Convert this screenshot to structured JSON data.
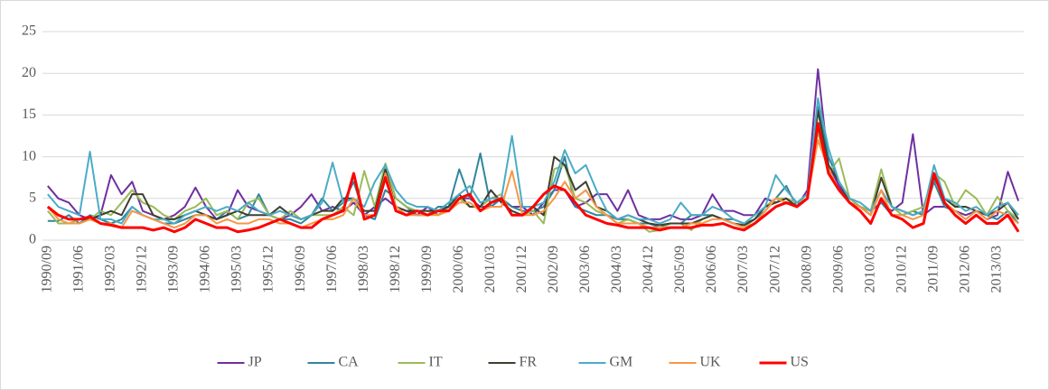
{
  "chart_data": {
    "type": "line",
    "categories": [
      "1990/09",
      null,
      null,
      "1991/06",
      null,
      null,
      "1992/03",
      null,
      null,
      "1992/12",
      null,
      null,
      "1993/09",
      null,
      null,
      "1994/06",
      null,
      null,
      "1995/03",
      null,
      null,
      "1995/12",
      null,
      null,
      "1996/09",
      null,
      null,
      "1997/06",
      null,
      null,
      "1998/03",
      null,
      null,
      "1998/12",
      null,
      null,
      "1999/09",
      null,
      null,
      "2000/06",
      null,
      null,
      "2001/03",
      null,
      null,
      "2001/12",
      null,
      null,
      "2002/09",
      null,
      null,
      "2003/06",
      null,
      null,
      "2004/03",
      null,
      null,
      "2004/12",
      null,
      null,
      "2005/09",
      null,
      null,
      "2006/06",
      null,
      null,
      "2007/03",
      null,
      null,
      "2007/12",
      null,
      null,
      "2008/09",
      null,
      null,
      "2009/06",
      null,
      null,
      "2010/03",
      null,
      null,
      "2010/12",
      null,
      null,
      "2011/09",
      null,
      null,
      "2012/06",
      null,
      null,
      "2013/03",
      null,
      null
    ],
    "series": [
      {
        "name": "JP",
        "color": "#7030a0",
        "values": [
          6.5,
          5,
          4.5,
          3,
          2.5,
          3,
          7.8,
          5.5,
          7,
          3.5,
          3,
          2.5,
          3,
          4,
          6.3,
          4,
          2.5,
          3,
          6,
          4,
          3.5,
          3,
          2.5,
          3,
          4,
          5.5,
          3.5,
          4,
          3.5,
          4.5,
          3,
          4,
          5,
          4,
          3.5,
          3,
          4,
          3,
          4,
          5,
          5,
          4,
          4,
          5,
          4,
          4,
          3,
          4.5,
          6,
          6,
          4,
          4.5,
          5.5,
          5.5,
          3.5,
          6,
          3,
          2.5,
          2.5,
          3,
          2.5,
          2.5,
          3,
          5.5,
          3.5,
          3.5,
          3,
          3,
          5,
          4.5,
          5,
          4,
          6,
          20.5,
          9,
          6.5,
          4.5,
          4,
          3.5,
          4.5,
          3.5,
          4.5,
          12.7,
          3,
          4,
          4,
          3.5,
          3,
          3.5,
          2.5,
          3,
          8.2,
          4.7
        ]
      },
      {
        "name": "CA",
        "color": "#31859c",
        "values": [
          2.3,
          2.3,
          3,
          2,
          3,
          2.5,
          2,
          2.5,
          4,
          3,
          2.5,
          2,
          2,
          2.5,
          3,
          3,
          2.5,
          3.5,
          2.5,
          3,
          5.5,
          3,
          2.5,
          2.5,
          2,
          3,
          5,
          3.5,
          4.5,
          7,
          3,
          2.5,
          6,
          5,
          4,
          3,
          3,
          4,
          4,
          8.5,
          5,
          10.4,
          4,
          5,
          4,
          3.5,
          3.5,
          4,
          6,
          10,
          4,
          3.5,
          3,
          3,
          2.5,
          2.5,
          2,
          2,
          1.5,
          2,
          2,
          3,
          3,
          3,
          2.5,
          2.5,
          2,
          2.5,
          3.5,
          5,
          6.5,
          4,
          5,
          16,
          10,
          7,
          5,
          4,
          3.5,
          4.5,
          3,
          3,
          3.5,
          3,
          7,
          4,
          3.5,
          2.5,
          3.5,
          3,
          2.5,
          3.5,
          2
        ]
      },
      {
        "name": "IT",
        "color": "#9bbb59",
        "values": [
          3.5,
          2,
          2,
          2.5,
          2.5,
          3.5,
          3,
          4.5,
          6,
          4.5,
          4,
          3,
          2.5,
          3.5,
          4,
          5,
          3,
          3.5,
          2.5,
          4.5,
          5,
          3,
          2.5,
          3.5,
          2.5,
          3,
          3,
          3,
          4,
          3,
          8.3,
          4,
          9.2,
          5,
          4,
          3.5,
          3.5,
          3,
          4,
          5,
          4,
          4,
          5,
          5.5,
          3,
          3,
          3.5,
          2,
          8.5,
          9,
          5,
          4.5,
          3.5,
          3,
          2,
          2.5,
          2,
          1,
          1.2,
          2,
          2,
          1.2,
          2.5,
          3,
          2.5,
          2,
          1.5,
          2.5,
          4,
          5,
          5,
          4.5,
          5,
          13,
          8,
          9.8,
          5,
          4,
          3.5,
          8.5,
          4,
          3,
          3.5,
          4,
          8,
          7,
          4,
          6,
          5,
          3,
          5.2,
          3.5,
          2.5
        ]
      },
      {
        "name": "FR",
        "color": "#3f3f2f",
        "values": [
          4,
          3,
          2.5,
          2.5,
          2.5,
          3,
          3.5,
          3,
          5.5,
          5.5,
          3,
          2.5,
          2.5,
          3,
          3.5,
          3,
          2.5,
          3,
          3.5,
          3,
          3,
          3,
          4,
          3,
          2.5,
          3,
          3.5,
          3.5,
          5,
          5,
          3.5,
          3.5,
          8.5,
          4,
          3.5,
          3.5,
          3.5,
          3.5,
          4,
          5.5,
          4,
          4,
          6,
          4.5,
          3.5,
          3,
          4,
          3,
          10,
          9,
          6,
          7,
          4,
          3.5,
          2.5,
          3,
          2.5,
          2,
          1.8,
          2,
          2,
          2,
          2.5,
          3,
          2.5,
          2,
          1.8,
          2.5,
          4,
          4.5,
          5,
          4,
          5,
          15.5,
          9,
          7,
          4.5,
          4,
          3,
          7.5,
          4,
          3.5,
          3,
          3.5,
          7.5,
          5,
          4,
          4,
          3.5,
          3,
          3.5,
          4.5,
          2.5
        ]
      },
      {
        "name": "GM",
        "color": "#4bacc6",
        "values": [
          5.5,
          4,
          3.5,
          3,
          10.6,
          2.5,
          2.5,
          2,
          4,
          3,
          2.5,
          2.5,
          2,
          3,
          3.5,
          4,
          3.5,
          4,
          3.5,
          4.5,
          3.5,
          3,
          3.5,
          3,
          2.5,
          3,
          4.5,
          9.3,
          4.5,
          5,
          4,
          7,
          9,
          6,
          4.5,
          4,
          4,
          3.5,
          4.5,
          5.5,
          6.5,
          4.5,
          5,
          5,
          12.5,
          4,
          4,
          4.5,
          7,
          10.8,
          8,
          9,
          6,
          3.5,
          2.5,
          3,
          2.5,
          2.5,
          2,
          2.5,
          4.5,
          3,
          3,
          4,
          3.5,
          2.5,
          2,
          3,
          4,
          7.8,
          6,
          4.5,
          5.5,
          17,
          11,
          7,
          5,
          4.5,
          3.5,
          6,
          4,
          3.5,
          3,
          3.5,
          9,
          5,
          4.5,
          3.5,
          4,
          3,
          4,
          4.5,
          3
        ]
      },
      {
        "name": "UK",
        "color": "#f79646",
        "values": [
          4,
          2.5,
          2,
          2,
          2.5,
          2,
          2,
          1.5,
          3.5,
          3,
          2.5,
          2,
          1.5,
          2,
          3,
          3,
          2,
          2.5,
          2,
          2,
          2.5,
          2.5,
          2,
          2,
          1.5,
          2,
          2.5,
          2.5,
          3,
          5,
          3,
          3,
          8,
          4,
          3,
          3,
          3,
          3,
          3.5,
          4.5,
          4.5,
          3.5,
          4,
          4,
          8.3,
          3,
          3,
          3.5,
          5,
          7,
          5,
          6,
          4,
          3,
          2,
          2,
          2,
          1.5,
          1.5,
          1.5,
          1.5,
          2,
          2,
          2.5,
          2.5,
          2,
          1.5,
          2,
          3.5,
          5,
          4.5,
          4,
          5,
          12,
          8.5,
          6,
          4.5,
          4,
          3,
          6,
          3,
          3,
          2.5,
          3,
          8,
          4.5,
          3.5,
          2.5,
          3.5,
          2.5,
          3.5,
          3,
          2
        ]
      },
      {
        "name": "US",
        "color": "#ff0000",
        "values": [
          4,
          3,
          2.5,
          2.5,
          2.8,
          2,
          1.8,
          1.5,
          1.5,
          1.5,
          1.2,
          1.5,
          1,
          1.5,
          2.5,
          2,
          1.5,
          1.5,
          1,
          1.2,
          1.5,
          2,
          2.5,
          2,
          1.5,
          1.5,
          2.5,
          3,
          3.5,
          8,
          2.5,
          3,
          7.5,
          3.5,
          3,
          3.5,
          3,
          3.5,
          3.5,
          5,
          5.5,
          3.5,
          4.5,
          5,
          3,
          3,
          4,
          5.5,
          6.5,
          6,
          4.5,
          3,
          2.5,
          2,
          1.8,
          1.5,
          1.5,
          1.5,
          1.2,
          1.5,
          1.5,
          1.5,
          1.8,
          1.8,
          2,
          1.5,
          1.2,
          2,
          3,
          4,
          4.5,
          4,
          5,
          14,
          8,
          6,
          4.5,
          3.5,
          2,
          5,
          3,
          2.5,
          1.5,
          2,
          8,
          4.5,
          3,
          2,
          3,
          2,
          2,
          3,
          1
        ]
      }
    ],
    "ylim": [
      0,
      25
    ],
    "yticks": [
      0,
      5,
      10,
      15,
      20,
      25
    ],
    "grid": true,
    "legend": "bottom"
  }
}
